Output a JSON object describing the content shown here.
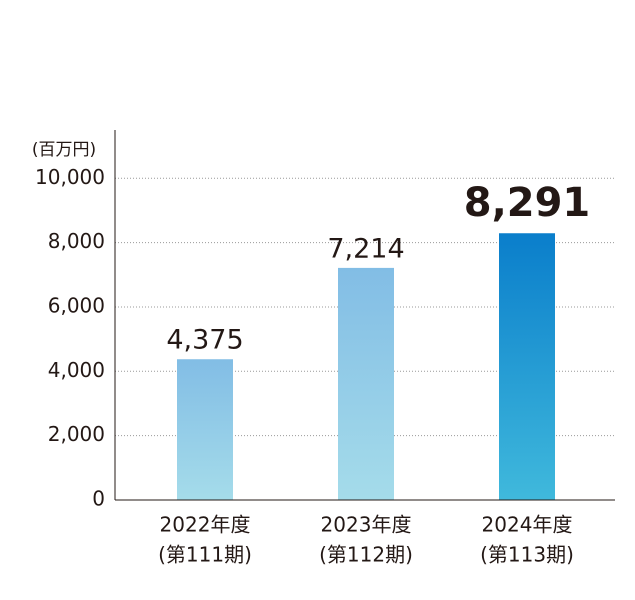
{
  "chart_data": {
    "type": "bar",
    "y_label": "(百万円)",
    "categories": [
      "2022年度",
      "2023年度",
      "2024年度"
    ],
    "periods": [
      "(第111期)",
      "(第112期)",
      "(第113期)"
    ],
    "values": [
      4375,
      7214,
      8291
    ],
    "value_labels": [
      "4,375",
      "7,214",
      "8,291"
    ],
    "colors": [
      [
        "#82bde5",
        "#a5dcea"
      ],
      [
        "#82bde5",
        "#a5dcea"
      ],
      [
        "#0a7ecb",
        "#40b9dc"
      ]
    ],
    "ylim": [
      0,
      11500
    ],
    "yticks": [
      0,
      {
        "value": 2000,
        "label": "2,000"
      },
      {
        "value": 4000,
        "label": "4,000"
      },
      {
        "value": 6000,
        "label": "6,000"
      },
      {
        "value": 8000,
        "label": "8,000"
      },
      {
        "value": 10000,
        "label": "10,000"
      }
    ],
    "grid": true
  }
}
